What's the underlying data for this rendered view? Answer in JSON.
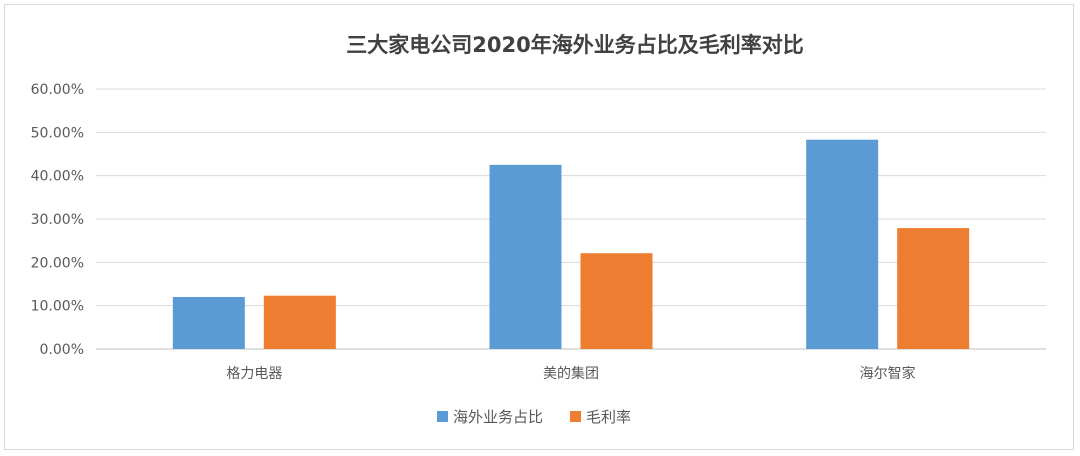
{
  "chart_data": {
    "type": "bar",
    "title": "三大家电公司2020年海外业务占比及毛利率对比",
    "categories": [
      "格力电器",
      "美的集团",
      "海尔智家"
    ],
    "series": [
      {
        "name": "海外业务占比",
        "color": "#5b9bd5",
        "values": [
          12.0,
          42.5,
          48.3
        ]
      },
      {
        "name": "毛利率",
        "color": "#ed7d31",
        "values": [
          12.3,
          22.1,
          27.9
        ]
      }
    ],
    "ylim": [
      0,
      60
    ],
    "yticks": [
      0,
      10,
      20,
      30,
      40,
      50,
      60
    ],
    "ytick_labels": [
      "0.00%",
      "10.00%",
      "20.00%",
      "30.00%",
      "40.00%",
      "50.00%",
      "60.00%"
    ],
    "grid": true,
    "legend_position": "bottom"
  }
}
